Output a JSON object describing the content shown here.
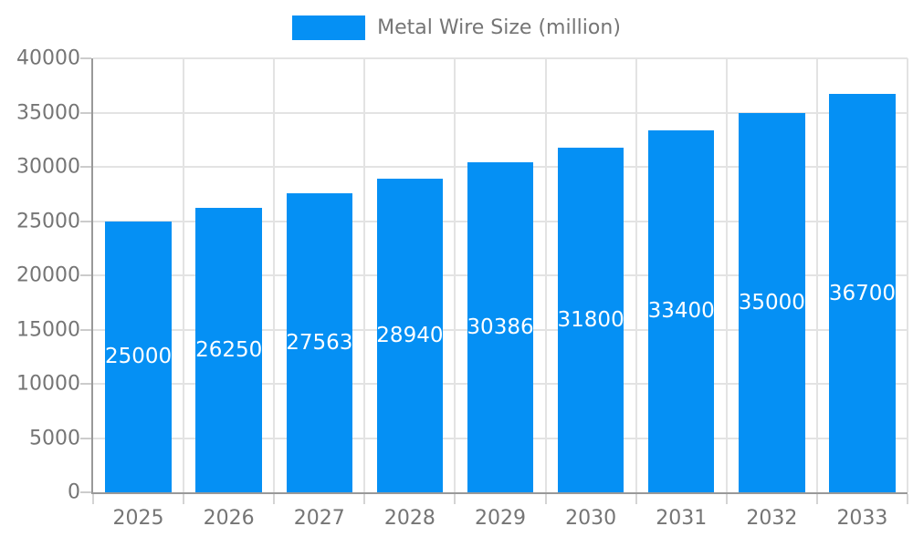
{
  "chart_data": {
    "type": "bar",
    "title": "Metal Wire Size (million)",
    "legend_position": "top",
    "categories": [
      "2025",
      "2026",
      "2027",
      "2028",
      "2029",
      "2030",
      "2031",
      "2032",
      "2033"
    ],
    "series": [
      {
        "name": "Metal Wire Size (million)",
        "values": [
          25000,
          26250,
          27563,
          28940,
          30386,
          31800,
          33400,
          35000,
          36700
        ]
      }
    ],
    "xlabel": "",
    "ylabel": "",
    "ylim": [
      0,
      40000
    ],
    "yticks": [
      0,
      5000,
      10000,
      15000,
      20000,
      25000,
      30000,
      35000,
      40000
    ],
    "grid": true,
    "bar_labels_visible": true,
    "colors": {
      "bar": "#0590f4",
      "bar_label": "#ffffff",
      "axis_text": "#757575",
      "gridline": "#e3e3e3",
      "axis_line": "#999999",
      "legend_text": "#757575"
    }
  }
}
